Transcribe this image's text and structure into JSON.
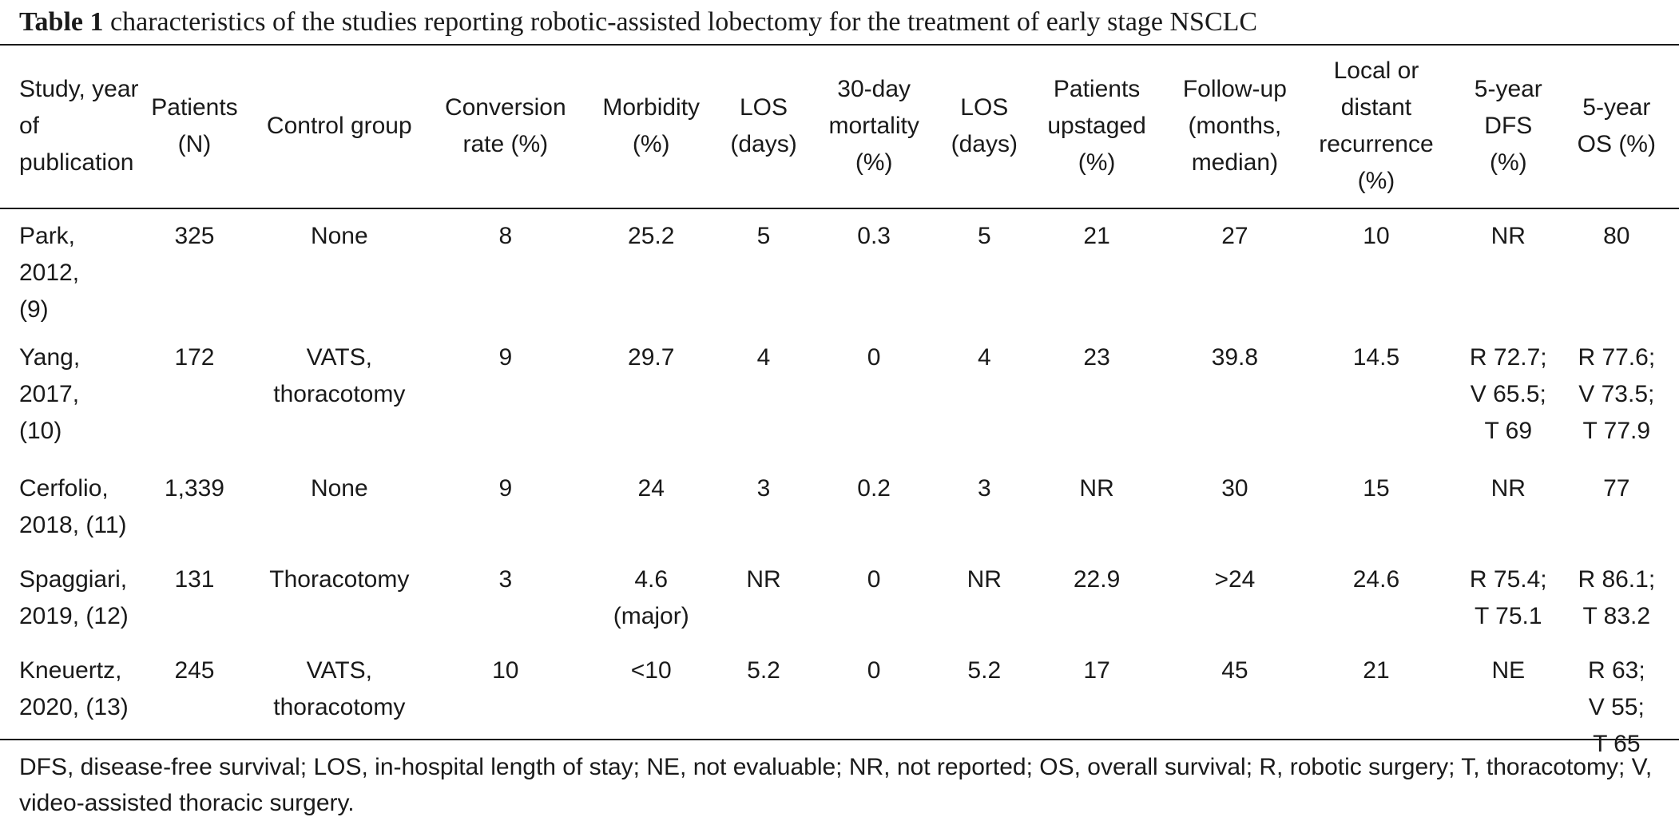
{
  "caption": {
    "label": "Table 1",
    "text": " characteristics of the studies reporting robotic-assisted lobectomy for the treatment of early stage NSCLC"
  },
  "table": {
    "headers": [
      "Study, year of\npublication",
      "Patients\n(N)",
      "Control group",
      "Conversion\nrate (%)",
      "Morbidity\n(%)",
      "LOS\n(days)",
      "30-day\nmortality\n(%)",
      "LOS\n(days)",
      "Patients\nupstaged\n(%)",
      "Follow-up\n(months,\nmedian)",
      "Local or\ndistant\nrecurrence\n(%)",
      "5-year\nDFS\n(%)",
      "5-year\nOS (%)"
    ],
    "rows": [
      [
        "Park, 2012,\n(9)",
        "325",
        "None",
        "8",
        "25.2",
        "5",
        "0.3",
        "5",
        "21",
        "27",
        "10",
        "NR",
        "80"
      ],
      [
        "Yang, 2017,\n(10)",
        "172",
        "VATS,\nthoracotomy",
        "9",
        "29.7",
        "4",
        "0",
        "4",
        "23",
        "39.8",
        "14.5",
        "R 72.7;\nV 65.5;\nT 69",
        "R 77.6;\nV 73.5;\nT 77.9"
      ],
      [
        "Cerfolio,\n2018, (11)",
        "1,339",
        "None",
        "9",
        "24",
        "3",
        "0.2",
        "3",
        "NR",
        "30",
        "15",
        "NR",
        "77"
      ],
      [
        "Spaggiari,\n2019, (12)",
        "131",
        "Thoracotomy",
        "3",
        "4.6\n(major)",
        "NR",
        "0",
        "NR",
        "22.9",
        ">24",
        "24.6",
        "R 75.4;\nT 75.1",
        "R 86.1;\nT 83.2"
      ],
      [
        "Kneuertz,\n2020, (13)",
        "245",
        "VATS,\nthoracotomy",
        "10",
        "<10",
        "5.2",
        "0",
        "5.2",
        "17",
        "45",
        "21",
        "NE",
        "R 63;\nV 55;\nT 65"
      ]
    ]
  },
  "footnote": "DFS, disease-free survival; LOS, in-hospital length of stay; NE, not evaluable; NR, not reported; OS, overall survival; R, robotic surgery; T, thoracotomy; V, video-assisted thoracic surgery."
}
